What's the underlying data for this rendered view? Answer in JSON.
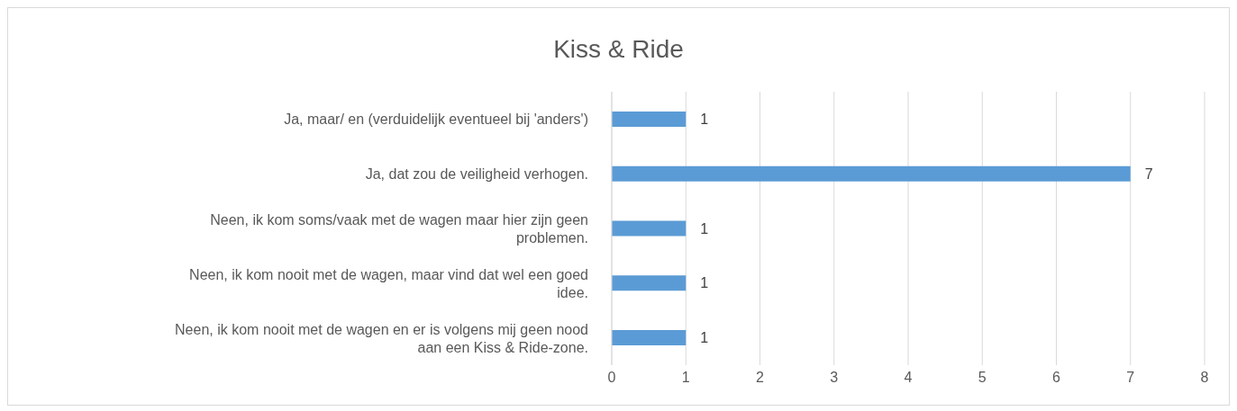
{
  "chart_data": {
    "type": "bar",
    "orientation": "horizontal",
    "title": "Kiss & Ride",
    "categories": [
      "Ja, maar/ en (verduidelijk eventueel bij 'anders')",
      "Ja, dat zou de veiligheid verhogen.",
      "Neen, ik kom soms/vaak met de wagen maar hier zijn geen problemen.",
      "Neen, ik kom nooit met de wagen, maar vind dat wel een goed idee.",
      "Neen, ik kom nooit met de wagen en er is volgens mij geen nood aan een Kiss & Ride-zone."
    ],
    "values": [
      1,
      7,
      1,
      1,
      1
    ],
    "color": "#5b9bd5",
    "xlim": [
      0,
      8
    ],
    "xticks": [
      0,
      1,
      2,
      3,
      4,
      5,
      6,
      7,
      8
    ],
    "grid": "x",
    "data_labels": true
  }
}
